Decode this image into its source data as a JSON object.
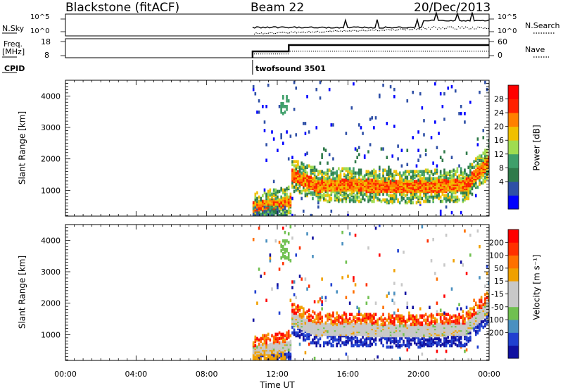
{
  "header": {
    "station": "Blackstone (fitACF)",
    "beam": "Beam 22",
    "date": "20/Dec/2013"
  },
  "panels": {
    "nsky": {
      "label": "N.Sky",
      "right_label": "N.Search",
      "ticks_left": [
        "10^5",
        "10^0"
      ],
      "ticks_right": [
        "10^5",
        "10^0"
      ]
    },
    "freq": {
      "label": "Freq.",
      "unit": "[MHz]",
      "right_label": "Nave",
      "ticks_left": [
        "18",
        "8"
      ],
      "ticks_right": [
        "60",
        "0"
      ]
    },
    "cpid": {
      "label": "CPID",
      "program": "twofsound 3501"
    }
  },
  "chart_data": [
    {
      "type": "heatmap",
      "name": "power",
      "ylabel": "Slant Range [km]",
      "ylim": [
        180,
        4500
      ],
      "yticks": [
        1000,
        2000,
        3000,
        4000
      ],
      "xticks": [
        "00:00",
        "04:00",
        "08:00",
        "12:00",
        "16:00",
        "20:00",
        "00:00"
      ],
      "xlim_hours": [
        0,
        24
      ],
      "data_start_hour": 10.6,
      "colorbar": {
        "label": "Power [dB]",
        "ticks": [
          "28",
          "24",
          "20",
          "16",
          "12",
          "8",
          "4"
        ],
        "colors": [
          "#0000ff",
          "#2e4fa6",
          "#2f7a4a",
          "#3f9f6a",
          "#9fdc50",
          "#f0c000",
          "#ff8000",
          "#ff2000",
          "#ff0000"
        ]
      }
    },
    {
      "type": "heatmap",
      "name": "velocity",
      "ylabel": "Slant Range [km]",
      "xlabel": "Time UT",
      "ylim": [
        180,
        4500
      ],
      "yticks": [
        1000,
        2000,
        3000,
        4000
      ],
      "xticks": [
        "00:00",
        "04:00",
        "08:00",
        "12:00",
        "16:00",
        "20:00",
        "00:00"
      ],
      "xlim_hours": [
        0,
        24
      ],
      "data_start_hour": 10.6,
      "colorbar": {
        "label": "Velocity [m s⁻¹]",
        "ticks": [
          "200",
          "100",
          "50",
          "15",
          "-15",
          "-50",
          "-100",
          "-200"
        ],
        "colors": [
          "#1010a0",
          "#2040d0",
          "#4a90c0",
          "#70c050",
          "#c8c8c8",
          "#c8c8c8",
          "#f0a000",
          "#ff7000",
          "#ff3000",
          "#ff0000"
        ]
      }
    }
  ]
}
